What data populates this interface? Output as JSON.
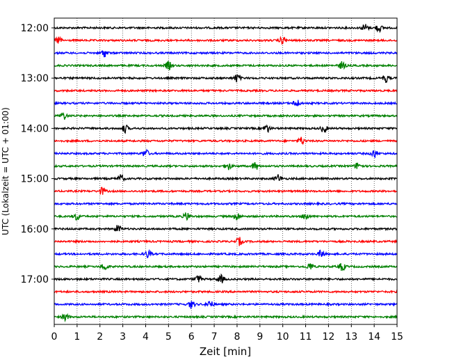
{
  "chart_data": {
    "type": "line",
    "title": "",
    "xlabel": "Zeit  [min]",
    "ylabel": "UTC (Lokalzeit = UTC + 01:00)",
    "xlim": [
      0,
      15
    ],
    "x_ticks": [
      "0",
      "1",
      "2",
      "3",
      "4",
      "5",
      "6",
      "7",
      "8",
      "9",
      "10",
      "11",
      "12",
      "13",
      "14",
      "15"
    ],
    "y_ticks": [
      "12:00",
      "13:00",
      "14:00",
      "15:00",
      "16:00",
      "17:00"
    ],
    "grid": "vertical dotted",
    "trace_interval_minutes": 15,
    "series_colors": [
      "#000000",
      "#ff0000",
      "#0000ff",
      "#008000"
    ],
    "series": [
      {
        "start": "12:00",
        "events_min": [
          13.6,
          14.2
        ]
      },
      {
        "start": "12:15",
        "events_min": [
          0.2,
          10.0
        ]
      },
      {
        "start": "12:30",
        "events_min": [
          2.2
        ]
      },
      {
        "start": "12:45",
        "events_min": [
          5.0,
          12.6
        ]
      },
      {
        "start": "13:00",
        "events_min": [
          8.0,
          14.5
        ]
      },
      {
        "start": "13:15",
        "events_min": []
      },
      {
        "start": "13:30",
        "events_min": [
          10.6
        ]
      },
      {
        "start": "13:45",
        "events_min": [
          0.4
        ]
      },
      {
        "start": "14:00",
        "events_min": [
          3.1,
          9.3,
          11.8
        ]
      },
      {
        "start": "14:15",
        "events_min": [
          10.8
        ]
      },
      {
        "start": "14:30",
        "events_min": [
          4.0,
          14.0
        ]
      },
      {
        "start": "14:45",
        "events_min": [
          7.6,
          8.8,
          13.3
        ]
      },
      {
        "start": "15:00",
        "events_min": [
          2.9,
          9.8
        ]
      },
      {
        "start": "15:15",
        "events_min": [
          2.1
        ]
      },
      {
        "start": "15:30",
        "events_min": []
      },
      {
        "start": "15:45",
        "events_min": [
          1.0,
          5.8,
          8.0,
          11.0
        ]
      },
      {
        "start": "16:00",
        "events_min": [
          2.8
        ]
      },
      {
        "start": "16:15",
        "events_min": [
          8.1
        ]
      },
      {
        "start": "16:30",
        "events_min": [
          4.1,
          11.7
        ]
      },
      {
        "start": "16:45",
        "events_min": [
          2.2,
          11.2,
          12.6
        ]
      },
      {
        "start": "17:00",
        "events_min": [
          6.3,
          7.3
        ]
      },
      {
        "start": "17:15",
        "events_min": []
      },
      {
        "start": "17:30",
        "events_min": [
          6.0,
          6.8
        ]
      },
      {
        "start": "17:45",
        "events_min": [
          0.5
        ]
      }
    ]
  }
}
